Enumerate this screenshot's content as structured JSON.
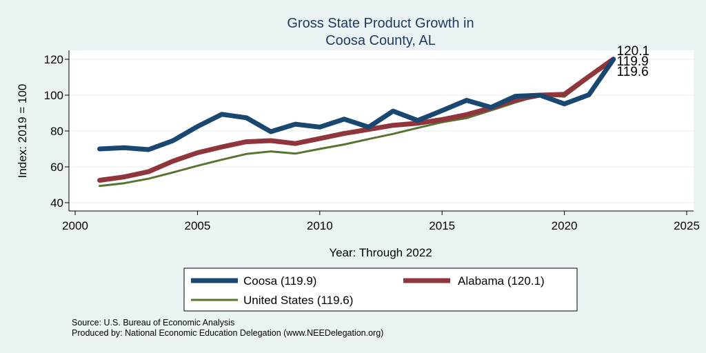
{
  "chart_data": {
    "type": "line",
    "title": [
      "Gross State Product Growth in",
      "Coosa County, AL"
    ],
    "xlabel": "Year: Through 2022",
    "ylabel": "Index: 2019 = 100",
    "xlim": [
      2000,
      2025
    ],
    "ylim": [
      37,
      124
    ],
    "xticks": [
      2000,
      2005,
      2010,
      2015,
      2020,
      2025
    ],
    "yticks": [
      40,
      60,
      80,
      100,
      120
    ],
    "grid": "horizontal",
    "x": [
      2001,
      2002,
      2003,
      2004,
      2005,
      2006,
      2007,
      2008,
      2009,
      2010,
      2011,
      2012,
      2013,
      2014,
      2015,
      2016,
      2017,
      2018,
      2019,
      2020,
      2021,
      2022
    ],
    "series": [
      {
        "name": "Coosa",
        "legend_label": "Coosa  (119.9)",
        "end_label": "119.9",
        "color": "#1a476f",
        "values": [
          70.0,
          70.7,
          69.6,
          74.6,
          82.5,
          89.3,
          87.4,
          79.6,
          83.8,
          82.2,
          86.6,
          82.2,
          91.1,
          85.9,
          91.4,
          97.1,
          93.2,
          99.4,
          100.0,
          95.1,
          100.2,
          119.9
        ]
      },
      {
        "name": "Alabama",
        "legend_label": "Alabama (120.1)",
        "end_label": "120.1",
        "color": "#90353b",
        "values": [
          52.5,
          54.4,
          57.3,
          63.2,
          67.9,
          71.1,
          74.0,
          74.6,
          73.0,
          75.8,
          78.6,
          80.9,
          83.2,
          84.3,
          86.4,
          89.1,
          92.9,
          97.3,
          100.0,
          100.5,
          110.4,
          120.1
        ]
      },
      {
        "name": "United States",
        "legend_label": "United States (119.6)",
        "end_label": "119.6",
        "color": "#55752f",
        "values": [
          49.3,
          50.9,
          53.4,
          56.9,
          60.6,
          64.0,
          67.2,
          68.6,
          67.4,
          70.0,
          72.5,
          75.5,
          78.4,
          81.7,
          84.9,
          87.2,
          91.5,
          95.9,
          100.0,
          99.1,
          109.5,
          119.6
        ]
      }
    ],
    "legend_position": "bottom",
    "notes": [
      "Source: U.S. Bureau of Economic Analysis",
      "Produced by: National Economic Education Delegation (www.NEEDelegation.org)"
    ]
  }
}
